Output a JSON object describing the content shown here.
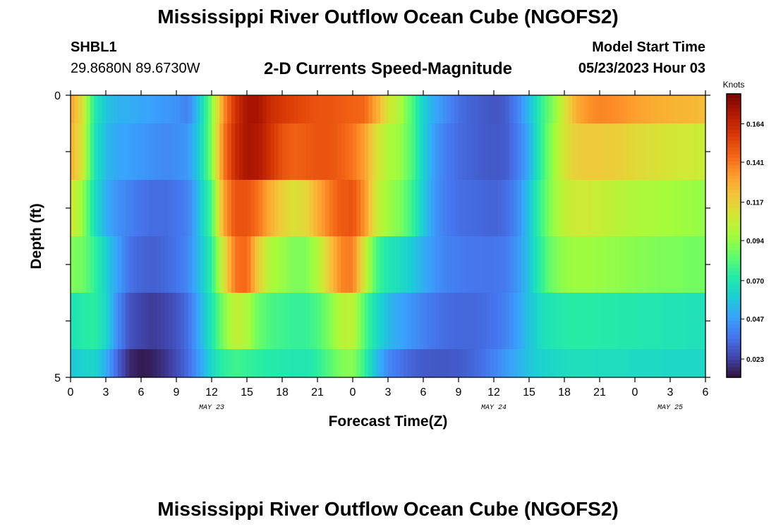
{
  "page": {
    "title": "Mississippi River Outflow Ocean Cube (NGOFS2)",
    "station_id": "SHBL1",
    "coordinates": "29.8680N  89.6730W",
    "subtitle": "2-D Currents Speed-Magnitude",
    "model_start_label": "Model Start Time",
    "model_start_value": "05/23/2023 Hour 03",
    "bottom_title": "Mississippi River Outflow Ocean Cube (NGOFS2)"
  },
  "chart_data": {
    "type": "heatmap",
    "title": "2-D Currents Speed-Magnitude",
    "xlabel": "Forecast Time(Z)",
    "ylabel": "Depth (ft)",
    "colorbar_label": "Knots",
    "x_range": [
      0,
      54
    ],
    "x_unit": "hours since 05/23 00Z",
    "x_tick_labels": [
      "0",
      "3",
      "6",
      "9",
      "12",
      "15",
      "18",
      "21",
      "0",
      "3",
      "6",
      "9",
      "12",
      "15",
      "18",
      "21",
      "0",
      "3",
      "6"
    ],
    "date_labels": [
      {
        "label": "MAY 23",
        "x": 12
      },
      {
        "label": "MAY 24",
        "x": 36
      },
      {
        "label": "MAY 25",
        "x": 51
      }
    ],
    "y_range": [
      0,
      5
    ],
    "y_tick_labels": [
      "0",
      "5"
    ],
    "colorbar_ticks": [
      0.023,
      0.047,
      0.07,
      0.094,
      0.117,
      0.141,
      0.164
    ],
    "colorbar_range": [
      0.012,
      0.182
    ],
    "colorscale": [
      "#30123b",
      "#4145ab",
      "#4675ed",
      "#39a2fc",
      "#1bcfd4",
      "#24eca6",
      "#61fc6c",
      "#a4fc3b",
      "#d1e834",
      "#f3c63a",
      "#fe9b2d",
      "#f36315",
      "#d93806",
      "#b11901",
      "#7a0403"
    ],
    "depth_layers": [
      {
        "top": 0,
        "bottom": 0.5,
        "hours": [
          0,
          1,
          2,
          3,
          4,
          5,
          6,
          7,
          8,
          9,
          10,
          11,
          12,
          13,
          14,
          15,
          16,
          17,
          18,
          19,
          20,
          21,
          22,
          23,
          24,
          25,
          26,
          27,
          28,
          29,
          30,
          31,
          32,
          33,
          34,
          35,
          36,
          37,
          38,
          39,
          40,
          41,
          42,
          43,
          44,
          45,
          46,
          47,
          48,
          49,
          50,
          51,
          52,
          53,
          54
        ],
        "speeds": [
          0.132,
          0.112,
          0.072,
          0.058,
          0.053,
          0.052,
          0.05,
          0.048,
          0.046,
          0.044,
          0.04,
          0.06,
          0.09,
          0.135,
          0.16,
          0.172,
          0.172,
          0.162,
          0.158,
          0.155,
          0.152,
          0.15,
          0.15,
          0.148,
          0.146,
          0.145,
          0.13,
          0.11,
          0.1,
          0.082,
          0.062,
          0.05,
          0.042,
          0.035,
          0.032,
          0.03,
          0.028,
          0.03,
          0.04,
          0.055,
          0.075,
          0.09,
          0.11,
          0.128,
          0.135,
          0.138,
          0.137,
          0.135,
          0.132,
          0.13,
          0.128,
          0.127,
          0.126,
          0.125,
          0.124
        ]
      },
      {
        "top": 0.5,
        "bottom": 1.5,
        "hours": [
          0,
          1,
          2,
          3,
          4,
          5,
          6,
          7,
          8,
          9,
          10,
          11,
          12,
          13,
          14,
          15,
          16,
          17,
          18,
          19,
          20,
          21,
          22,
          23,
          24,
          25,
          26,
          27,
          28,
          29,
          30,
          31,
          32,
          33,
          34,
          35,
          36,
          37,
          38,
          39,
          40,
          41,
          42,
          43,
          44,
          45,
          46,
          47,
          48,
          49,
          50,
          51,
          52,
          53,
          54
        ],
        "speeds": [
          0.128,
          0.11,
          0.07,
          0.055,
          0.05,
          0.048,
          0.046,
          0.044,
          0.042,
          0.043,
          0.046,
          0.062,
          0.09,
          0.14,
          0.162,
          0.172,
          0.17,
          0.16,
          0.15,
          0.146,
          0.148,
          0.15,
          0.15,
          0.147,
          0.142,
          0.132,
          0.112,
          0.1,
          0.095,
          0.082,
          0.062,
          0.046,
          0.038,
          0.034,
          0.032,
          0.03,
          0.029,
          0.03,
          0.038,
          0.052,
          0.075,
          0.094,
          0.11,
          0.118,
          0.12,
          0.12,
          0.119,
          0.117,
          0.115,
          0.113,
          0.112,
          0.11,
          0.109,
          0.108,
          0.107
        ]
      },
      {
        "top": 1.5,
        "bottom": 2.5,
        "hours": [
          0,
          1,
          2,
          3,
          4,
          5,
          6,
          7,
          8,
          9,
          10,
          11,
          12,
          13,
          14,
          15,
          16,
          17,
          18,
          19,
          20,
          21,
          22,
          23,
          24,
          25,
          26,
          27,
          28,
          29,
          30,
          31,
          32,
          33,
          34,
          35,
          36,
          37,
          38,
          39,
          40,
          41,
          42,
          43,
          44,
          45,
          46,
          47,
          48,
          49,
          50,
          51,
          52,
          53,
          54
        ],
        "speeds": [
          0.11,
          0.095,
          0.068,
          0.052,
          0.044,
          0.04,
          0.036,
          0.034,
          0.034,
          0.036,
          0.04,
          0.058,
          0.08,
          0.13,
          0.15,
          0.15,
          0.142,
          0.128,
          0.118,
          0.112,
          0.115,
          0.128,
          0.14,
          0.148,
          0.15,
          0.135,
          0.108,
          0.096,
          0.09,
          0.078,
          0.06,
          0.045,
          0.038,
          0.035,
          0.034,
          0.033,
          0.032,
          0.034,
          0.042,
          0.058,
          0.078,
          0.094,
          0.104,
          0.108,
          0.108,
          0.106,
          0.104,
          0.102,
          0.1,
          0.099,
          0.098,
          0.097,
          0.096,
          0.095,
          0.094
        ]
      },
      {
        "top": 2.5,
        "bottom": 3.5,
        "hours": [
          0,
          1,
          2,
          3,
          4,
          5,
          6,
          7,
          8,
          9,
          10,
          11,
          12,
          13,
          14,
          15,
          16,
          17,
          18,
          19,
          20,
          21,
          22,
          23,
          24,
          25,
          26,
          27,
          28,
          29,
          30,
          31,
          32,
          33,
          34,
          35,
          36,
          37,
          38,
          39,
          40,
          41,
          42,
          43,
          44,
          45,
          46,
          47,
          48,
          49,
          50,
          51,
          52,
          53,
          54
        ],
        "speeds": [
          0.09,
          0.088,
          0.076,
          0.062,
          0.048,
          0.036,
          0.032,
          0.031,
          0.033,
          0.036,
          0.042,
          0.056,
          0.074,
          0.11,
          0.142,
          0.145,
          0.118,
          0.1,
          0.095,
          0.09,
          0.09,
          0.1,
          0.12,
          0.138,
          0.14,
          0.108,
          0.08,
          0.07,
          0.066,
          0.06,
          0.052,
          0.045,
          0.04,
          0.038,
          0.037,
          0.036,
          0.036,
          0.038,
          0.045,
          0.058,
          0.075,
          0.088,
          0.094,
          0.096,
          0.096,
          0.095,
          0.094,
          0.093,
          0.092,
          0.091,
          0.09,
          0.09,
          0.089,
          0.088,
          0.088
        ]
      },
      {
        "top": 3.5,
        "bottom": 4.5,
        "hours": [
          0,
          1,
          2,
          3,
          4,
          5,
          6,
          7,
          8,
          9,
          10,
          11,
          12,
          13,
          14,
          15,
          16,
          17,
          18,
          19,
          20,
          21,
          22,
          23,
          24,
          25,
          26,
          27,
          28,
          29,
          30,
          31,
          32,
          33,
          34,
          35,
          36,
          37,
          38,
          39,
          40,
          41,
          42,
          43,
          44,
          45,
          46,
          47,
          48,
          49,
          50,
          51,
          52,
          53,
          54
        ],
        "speeds": [
          0.068,
          0.072,
          0.074,
          0.064,
          0.042,
          0.028,
          0.024,
          0.022,
          0.024,
          0.028,
          0.035,
          0.052,
          0.07,
          0.09,
          0.105,
          0.1,
          0.086,
          0.08,
          0.078,
          0.076,
          0.076,
          0.08,
          0.09,
          0.102,
          0.104,
          0.082,
          0.066,
          0.055,
          0.05,
          0.045,
          0.04,
          0.036,
          0.034,
          0.033,
          0.033,
          0.034,
          0.036,
          0.04,
          0.048,
          0.058,
          0.066,
          0.07,
          0.072,
          0.073,
          0.073,
          0.072,
          0.072,
          0.071,
          0.071,
          0.07,
          0.07,
          0.069,
          0.069,
          0.068,
          0.068
        ]
      },
      {
        "top": 4.5,
        "bottom": 5,
        "hours": [
          0,
          1,
          2,
          3,
          4,
          5,
          6,
          7,
          8,
          9,
          10,
          11,
          12,
          13,
          14,
          15,
          16,
          17,
          18,
          19,
          20,
          21,
          22,
          23,
          24,
          25,
          26,
          27,
          28,
          29,
          30,
          31,
          32,
          33,
          34,
          35,
          36,
          37,
          38,
          39,
          40,
          41,
          42,
          43,
          44,
          45,
          46,
          47,
          48,
          49,
          50,
          51,
          52,
          53,
          54
        ],
        "speeds": [
          0.058,
          0.062,
          0.064,
          0.052,
          0.032,
          0.018,
          0.014,
          0.016,
          0.02,
          0.026,
          0.034,
          0.048,
          0.064,
          0.074,
          0.078,
          0.076,
          0.074,
          0.072,
          0.071,
          0.07,
          0.07,
          0.074,
          0.082,
          0.09,
          0.092,
          0.076,
          0.056,
          0.042,
          0.036,
          0.032,
          0.03,
          0.029,
          0.029,
          0.03,
          0.032,
          0.035,
          0.04,
          0.046,
          0.052,
          0.058,
          0.062,
          0.064,
          0.066,
          0.067,
          0.067,
          0.066,
          0.066,
          0.066,
          0.065,
          0.065,
          0.065,
          0.064,
          0.064,
          0.064,
          0.064
        ]
      }
    ]
  }
}
